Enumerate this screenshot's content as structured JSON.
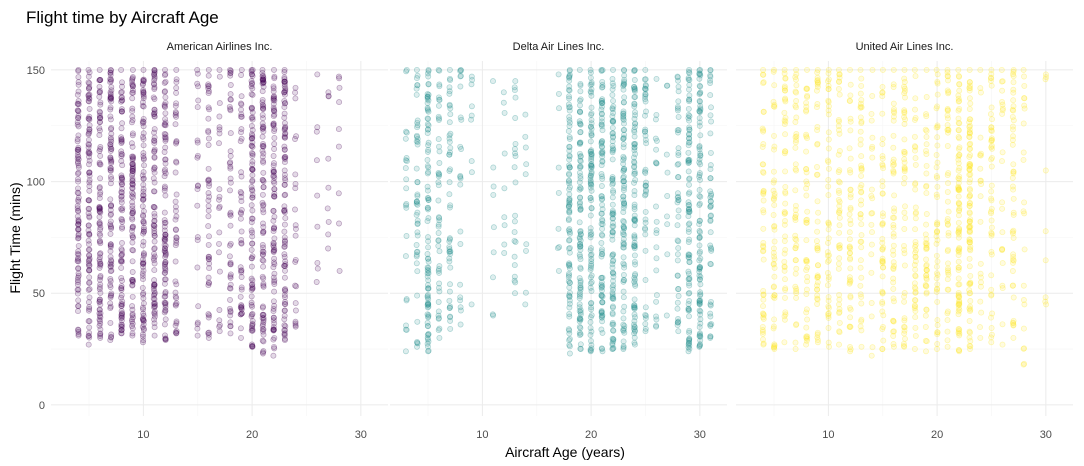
{
  "chart_data": {
    "type": "scatter",
    "title": "Flight time by Aircraft Age",
    "xlabel": "Aircraft Age (years)",
    "ylabel": "Flight Time (mins)",
    "xlim": [
      1.5,
      32.5
    ],
    "ylim": [
      -5,
      154
    ],
    "x_ticks": [
      10,
      20,
      30
    ],
    "y_ticks": [
      0,
      50,
      100,
      150
    ],
    "grid": true,
    "legend": "none",
    "point_alpha": 0.15,
    "facets": [
      {
        "name": "American Airlines Inc.",
        "color": "#440154",
        "age_columns": [
          {
            "x": 4,
            "ymin": 31,
            "ymax": 150,
            "density": "dense"
          },
          {
            "x": 5,
            "ymin": 27,
            "ymax": 150,
            "density": "dense"
          },
          {
            "x": 6,
            "ymin": 30,
            "ymax": 150,
            "density": "dense"
          },
          {
            "x": 7,
            "ymin": 29,
            "ymax": 150,
            "density": "dense"
          },
          {
            "x": 8,
            "ymin": 32,
            "ymax": 150,
            "density": "dense"
          },
          {
            "x": 9,
            "ymin": 31,
            "ymax": 150,
            "density": "dense"
          },
          {
            "x": 10,
            "ymin": 28,
            "ymax": 150,
            "density": "dense"
          },
          {
            "x": 11,
            "ymin": 31,
            "ymax": 150,
            "density": "dense"
          },
          {
            "x": 12,
            "ymin": 29,
            "ymax": 150,
            "density": "dense"
          },
          {
            "x": 13,
            "ymin": 32,
            "ymax": 150,
            "density": "medium"
          },
          {
            "x": 15,
            "ymin": 31,
            "ymax": 150,
            "density": "sparse"
          },
          {
            "x": 16,
            "ymin": 30,
            "ymax": 150,
            "density": "medium"
          },
          {
            "x": 17,
            "ymin": 33,
            "ymax": 150,
            "density": "sparse"
          },
          {
            "x": 18,
            "ymin": 32,
            "ymax": 150,
            "density": "medium"
          },
          {
            "x": 19,
            "ymin": 30,
            "ymax": 150,
            "density": "medium"
          },
          {
            "x": 20,
            "ymin": 26,
            "ymax": 150,
            "density": "dense"
          },
          {
            "x": 21,
            "ymin": 23,
            "ymax": 150,
            "density": "dense"
          },
          {
            "x": 22,
            "ymin": 22,
            "ymax": 150,
            "density": "dense"
          },
          {
            "x": 23,
            "ymin": 29,
            "ymax": 150,
            "density": "dense"
          },
          {
            "x": 24,
            "ymin": 35,
            "ymax": 142,
            "density": "sparse"
          },
          {
            "x": 26,
            "ymin": 55,
            "ymax": 148,
            "density": "rare"
          },
          {
            "x": 27,
            "ymin": 70,
            "ymax": 140,
            "density": "rare"
          },
          {
            "x": 28,
            "ymin": 60,
            "ymax": 147,
            "density": "rare"
          }
        ]
      },
      {
        "name": "Delta Air Lines Inc.",
        "color": "#21908C",
        "age_columns": [
          {
            "x": 3,
            "ymin": 24,
            "ymax": 150,
            "density": "sparse"
          },
          {
            "x": 4,
            "ymin": 26,
            "ymax": 150,
            "density": "medium"
          },
          {
            "x": 5,
            "ymin": 24,
            "ymax": 150,
            "density": "dense"
          },
          {
            "x": 6,
            "ymin": 30,
            "ymax": 150,
            "density": "medium"
          },
          {
            "x": 7,
            "ymin": 34,
            "ymax": 150,
            "density": "medium"
          },
          {
            "x": 8,
            "ymin": 36,
            "ymax": 150,
            "density": "sparse"
          },
          {
            "x": 9,
            "ymin": 45,
            "ymax": 147,
            "density": "rare"
          },
          {
            "x": 11,
            "ymin": 40,
            "ymax": 145,
            "density": "rare"
          },
          {
            "x": 12,
            "ymin": 68,
            "ymax": 140,
            "density": "rare"
          },
          {
            "x": 13,
            "ymin": 50,
            "ymax": 145,
            "density": "sparse"
          },
          {
            "x": 14,
            "ymin": 45,
            "ymax": 130,
            "density": "rare"
          },
          {
            "x": 17,
            "ymin": 60,
            "ymax": 148,
            "density": "rare"
          },
          {
            "x": 18,
            "ymin": 23,
            "ymax": 150,
            "density": "dense"
          },
          {
            "x": 19,
            "ymin": 25,
            "ymax": 150,
            "density": "dense"
          },
          {
            "x": 20,
            "ymin": 24,
            "ymax": 150,
            "density": "dense"
          },
          {
            "x": 21,
            "ymin": 24,
            "ymax": 150,
            "density": "dense"
          },
          {
            "x": 22,
            "ymin": 25,
            "ymax": 150,
            "density": "dense"
          },
          {
            "x": 23,
            "ymin": 25,
            "ymax": 150,
            "density": "dense"
          },
          {
            "x": 24,
            "ymin": 27,
            "ymax": 150,
            "density": "dense"
          },
          {
            "x": 25,
            "ymin": 33,
            "ymax": 150,
            "density": "medium"
          },
          {
            "x": 26,
            "ymin": 35,
            "ymax": 146,
            "density": "sparse"
          },
          {
            "x": 27,
            "ymin": 40,
            "ymax": 143,
            "density": "rare"
          },
          {
            "x": 28,
            "ymin": 33,
            "ymax": 147,
            "density": "medium"
          },
          {
            "x": 29,
            "ymin": 24,
            "ymax": 150,
            "density": "dense"
          },
          {
            "x": 30,
            "ymin": 26,
            "ymax": 150,
            "density": "dense"
          },
          {
            "x": 31,
            "ymin": 30,
            "ymax": 150,
            "density": "medium"
          }
        ]
      },
      {
        "name": "United Air Lines Inc.",
        "color": "#FDE725",
        "age_columns": [
          {
            "x": 4,
            "ymin": 27,
            "ymax": 150,
            "density": "medium"
          },
          {
            "x": 5,
            "ymin": 25,
            "ymax": 150,
            "density": "medium"
          },
          {
            "x": 6,
            "ymin": 28,
            "ymax": 150,
            "density": "medium"
          },
          {
            "x": 7,
            "ymin": 25,
            "ymax": 150,
            "density": "medium"
          },
          {
            "x": 8,
            "ymin": 27,
            "ymax": 150,
            "density": "medium"
          },
          {
            "x": 9,
            "ymin": 28,
            "ymax": 150,
            "density": "medium"
          },
          {
            "x": 10,
            "ymin": 26,
            "ymax": 150,
            "density": "medium"
          },
          {
            "x": 11,
            "ymin": 27,
            "ymax": 150,
            "density": "medium"
          },
          {
            "x": 12,
            "ymin": 24,
            "ymax": 150,
            "density": "medium"
          },
          {
            "x": 13,
            "ymin": 26,
            "ymax": 150,
            "density": "medium"
          },
          {
            "x": 14,
            "ymin": 22,
            "ymax": 150,
            "density": "sparse"
          },
          {
            "x": 15,
            "ymin": 25,
            "ymax": 150,
            "density": "medium"
          },
          {
            "x": 16,
            "ymin": 26,
            "ymax": 150,
            "density": "medium"
          },
          {
            "x": 17,
            "ymin": 26,
            "ymax": 150,
            "density": "medium"
          },
          {
            "x": 18,
            "ymin": 25,
            "ymax": 150,
            "density": "medium"
          },
          {
            "x": 19,
            "ymin": 24,
            "ymax": 150,
            "density": "medium"
          },
          {
            "x": 20,
            "ymin": 25,
            "ymax": 150,
            "density": "medium"
          },
          {
            "x": 21,
            "ymin": 26,
            "ymax": 150,
            "density": "medium"
          },
          {
            "x": 22,
            "ymin": 24,
            "ymax": 150,
            "density": "dense"
          },
          {
            "x": 23,
            "ymin": 25,
            "ymax": 150,
            "density": "dense"
          },
          {
            "x": 24,
            "ymin": 30,
            "ymax": 150,
            "density": "sparse"
          },
          {
            "x": 25,
            "ymin": 28,
            "ymax": 150,
            "density": "medium"
          },
          {
            "x": 26,
            "ymin": 27,
            "ymax": 150,
            "density": "sparse"
          },
          {
            "x": 27,
            "ymin": 30,
            "ymax": 150,
            "density": "medium"
          },
          {
            "x": 28,
            "ymin": 18,
            "ymax": 150,
            "density": "sparse"
          },
          {
            "x": 30,
            "ymin": 45,
            "ymax": 148,
            "density": "rare"
          }
        ]
      }
    ]
  }
}
